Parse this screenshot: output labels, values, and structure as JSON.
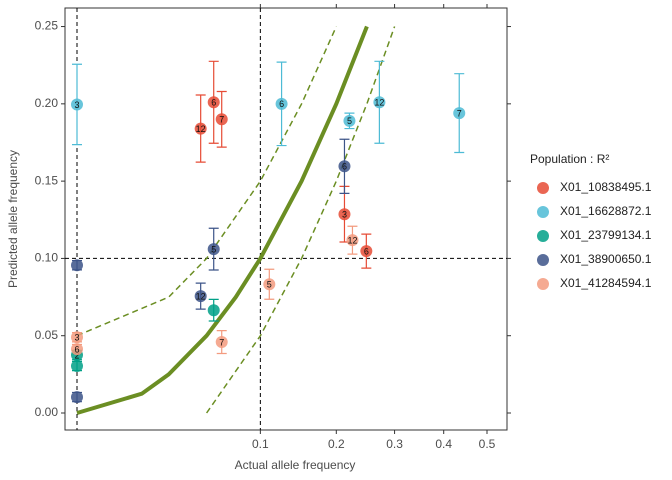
{
  "chart_data": {
    "type": "scatter",
    "x_label": "Actual allele frequency",
    "y_label": "Predicted allele frequency",
    "legend_title": "Population : R²",
    "x_scale": "sqrt",
    "xlim": [
      0,
      0.55
    ],
    "ylim": [
      -0.011,
      0.262
    ],
    "xticks": [
      0.1,
      0.2,
      0.3,
      0.4,
      0.5
    ],
    "yticks": [
      {
        "value": 0,
        "label": "0.00"
      },
      {
        "value": 0.05,
        "label": "0.05"
      },
      {
        "value": 0.1,
        "label": "0.10"
      },
      {
        "value": 0.15,
        "label": "0.15"
      },
      {
        "value": 0.2,
        "label": "0.20"
      },
      {
        "value": 0.25,
        "label": "0.25"
      }
    ],
    "vlines": [
      0,
      0.1
    ],
    "hlines": [
      0.1
    ],
    "curve_color": "#6B8E23",
    "curves": [
      {
        "style": "solid",
        "x": [
          0,
          0.0125,
          0.025,
          0.05,
          0.075,
          0.1,
          0.15,
          0.2,
          0.25
        ],
        "y": [
          0,
          0.0125,
          0.025,
          0.05,
          0.075,
          0.1,
          0.15,
          0.2,
          0.25
        ]
      },
      {
        "style": "dashed",
        "x": [
          0,
          0.025,
          0.05,
          0.1,
          0.15,
          0.2
        ],
        "y": [
          0.05,
          0.075,
          0.1,
          0.15,
          0.2,
          0.25
        ]
      },
      {
        "style": "dashed",
        "x": [
          0.05,
          0.1,
          0.15,
          0.2,
          0.25,
          0.3
        ],
        "y": [
          0,
          0.05,
          0.1,
          0.15,
          0.2,
          0.25
        ]
      }
    ],
    "series": [
      {
        "name": "X01_10838495.1",
        "color": "#E64B35",
        "x": [
          0.0455,
          0.0556,
          0.0623,
          0.2128,
          0.249
        ],
        "values": [
          0.184,
          0.201,
          0.19,
          0.1286,
          0.1047
        ],
        "errors": [
          0.0217,
          0.0265,
          0.018,
          0.018,
          0.011
        ],
        "labels": [
          "12",
          "6",
          "7",
          "3",
          "6"
        ]
      },
      {
        "name": "X01_16628872.1",
        "color": "#4DBBD5",
        "x": [
          0,
          0.1245,
          0.2208,
          0.272,
          0.4346
        ],
        "values": [
          0.1996,
          0.2,
          0.189,
          0.201,
          0.194
        ],
        "errors": [
          0.026,
          0.027,
          0.005,
          0.0265,
          0.0255
        ],
        "labels": [
          "3",
          "6",
          "5",
          "12",
          "7"
        ]
      },
      {
        "name": "X01_23799134.1",
        "color": "#00A087",
        "x": [
          0,
          0,
          0.0556
        ],
        "values": [
          0.0375,
          0.0304,
          0.0665
        ],
        "errors": [
          0.003,
          0.003,
          0.007
        ],
        "labels": [
          "2",
          null,
          null
        ]
      },
      {
        "name": "X01_38900650.1",
        "color": "#3C5488",
        "x": [
          0,
          0,
          0.0455,
          0.0556,
          0.2128
        ],
        "values": [
          0.0956,
          0.0103,
          0.0756,
          0.106,
          0.1596
        ],
        "errors": [
          0.003,
          0.003,
          0.0084,
          0.0135,
          0.0175
        ],
        "labels": [
          null,
          null,
          "12",
          "5",
          "6"
        ]
      },
      {
        "name": "X01_41284594.1",
        "color": "#F39B7F",
        "x": [
          0,
          0,
          0.0623,
          0.11,
          0.2257
        ],
        "values": [
          0.049,
          0.0413,
          0.0459,
          0.0833,
          0.1118
        ],
        "errors": [
          0.003,
          0.003,
          0.0074,
          0.0097,
          0.009
        ],
        "labels": [
          "3",
          "6",
          "7",
          "5",
          "12"
        ]
      }
    ]
  }
}
